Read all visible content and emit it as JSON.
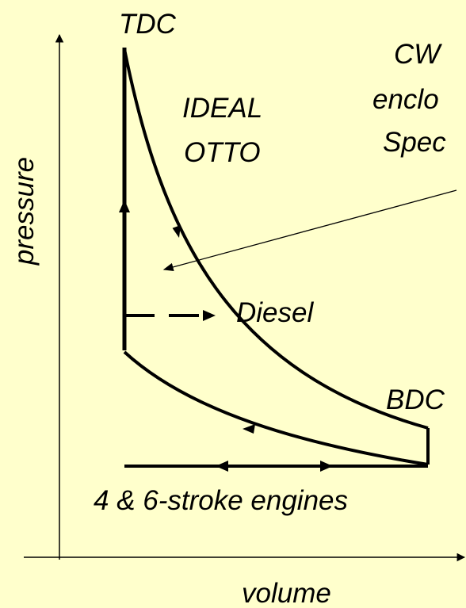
{
  "labels": {
    "tdc": "TDC",
    "ideal": "IDEAL",
    "otto": "OTTO",
    "cw": "CW",
    "enclosed": "enclo",
    "specific": "Spec",
    "y_axis": "pressure",
    "diesel": "Diesel",
    "bdc": "BDC",
    "engines": "4 & 6-stroke engines",
    "x_axis": "volume"
  }
}
